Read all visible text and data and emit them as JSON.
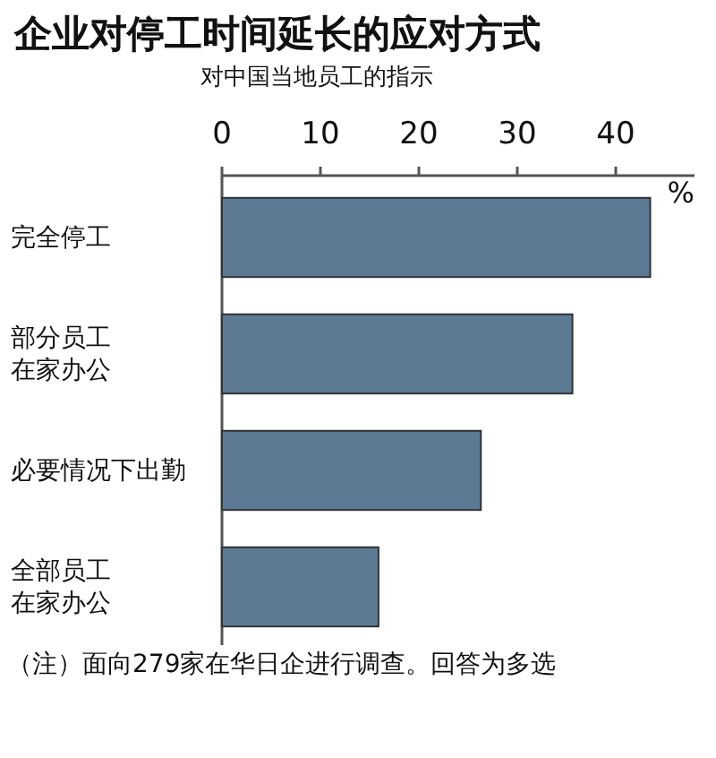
{
  "chart_data": {
    "type": "bar",
    "orientation": "horizontal",
    "title": "企业对停工时间延长的应对方式",
    "subtitle": "对中国当地员工的指示",
    "xlabel": "%",
    "categories": [
      "完全停工",
      "部分员工在家办公",
      "必要情况下出勤",
      "全部员工在家办公"
    ],
    "values": [
      43.5,
      35.6,
      26.3,
      15.9
    ],
    "color": "#5c7a94",
    "xlim": [
      0,
      48
    ],
    "xticks": [
      0,
      10,
      20,
      30,
      40
    ],
    "grid": false,
    "annotations": [
      "（注）面向279家在华日企进行调查。回答为多选"
    ]
  }
}
